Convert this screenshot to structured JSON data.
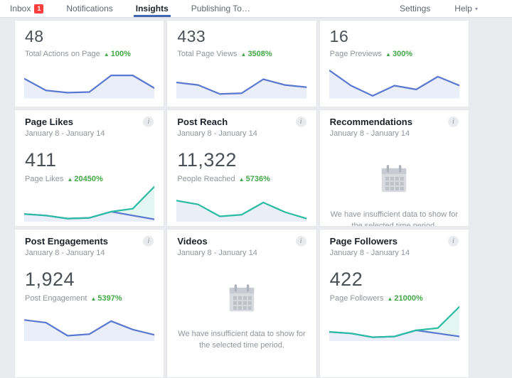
{
  "nav": {
    "inbox": {
      "label": "Inbox",
      "badge": "1"
    },
    "notifications": {
      "label": "Notifications"
    },
    "insights": {
      "label": "Insights"
    },
    "publishing": {
      "label": "Publishing To…"
    },
    "settings": {
      "label": "Settings"
    },
    "help": {
      "label": "Help"
    }
  },
  "glyphs": {
    "up": "▲",
    "caret": "▾",
    "info": "i"
  },
  "cards": {
    "total_actions": {
      "value": "48",
      "label": "Total Actions on Page",
      "change": "100%"
    },
    "total_page_views": {
      "value": "433",
      "label": "Total Page Views",
      "change": "3508%"
    },
    "page_previews": {
      "value": "16",
      "label": "Page Previews",
      "change": "300%"
    },
    "page_likes": {
      "title": "Page Likes",
      "dates": "January 8 - January 14",
      "value": "411",
      "label": "Page Likes",
      "change": "20450%"
    },
    "post_reach": {
      "title": "Post Reach",
      "dates": "January 8 - January 14",
      "value": "11,322",
      "label": "People Reached",
      "change": "5736%"
    },
    "recommendations": {
      "title": "Recommendations",
      "dates": "January 8 - January 14",
      "nodata": "We have insufficient data to show for the selected time period."
    },
    "post_engagements": {
      "title": "Post Engagements",
      "dates": "January 8 - January 14",
      "value": "1,924",
      "label": "Post Engagement",
      "change": "5397%"
    },
    "videos": {
      "title": "Videos",
      "dates": "January 8 - January 14",
      "nodata": "We have insufficient data to show for the selected time period."
    },
    "page_followers": {
      "title": "Page Followers",
      "dates": "January 8 - January 14",
      "value": "422",
      "label": "Page Followers",
      "change": "21000%"
    }
  },
  "colors": {
    "accent_blue": "#4267b2",
    "badge_red": "#fa3e3e",
    "growth_green": "#42a846",
    "spark_blue": "#5a78cf",
    "spark_blue_fill": "#e9eef9",
    "spark_teal": "#2abca3",
    "spark_teal_fill": "#e3f6f1",
    "page_bg": "#e9ebee",
    "card_border": "#e4e6e9"
  },
  "chart_data": [
    {
      "type": "area",
      "title": "Total Actions on Page sparkline",
      "axes_visible": false,
      "y_scale": "relative 0-100 (no axis shown)",
      "series": [
        {
          "name": "blue-line",
          "color": "#5a78cf",
          "fill": "#e9eef9",
          "values": [
            62,
            25,
            18,
            20,
            72,
            72,
            32
          ]
        }
      ]
    },
    {
      "type": "area",
      "title": "Total Page Views sparkline",
      "axes_visible": false,
      "y_scale": "relative 0-100 (no axis shown)",
      "series": [
        {
          "name": "blue-line",
          "color": "#5a78cf",
          "fill": "#e9eef9",
          "values": [
            50,
            42,
            14,
            16,
            60,
            42,
            35
          ]
        }
      ]
    },
    {
      "type": "area",
      "title": "Page Previews sparkline",
      "axes_visible": false,
      "y_scale": "relative 0-100 (no axis shown)",
      "series": [
        {
          "name": "blue-line",
          "color": "#5a78cf",
          "fill": "#e9eef9",
          "values": [
            88,
            40,
            8,
            40,
            28,
            68,
            40
          ]
        }
      ]
    },
    {
      "type": "area",
      "title": "Page Likes sparkline",
      "period": "January 8 - January 14",
      "axes_visible": false,
      "y_scale": "relative 0-100 (no axis shown)",
      "series": [
        {
          "name": "teal-line",
          "color": "#2abca3",
          "fill": "#e3f6f1",
          "values": [
            20,
            16,
            8,
            10,
            26,
            34,
            92
          ]
        },
        {
          "name": "blue-line",
          "color": "#5a78cf",
          "fill": "#e9eef9",
          "values": [
            20,
            16,
            8,
            10,
            26,
            16,
            6
          ]
        }
      ]
    },
    {
      "type": "area",
      "title": "Post Reach sparkline",
      "period": "January 8 - January 14",
      "axes_visible": false,
      "y_scale": "relative 0-100 (no axis shown)",
      "series": [
        {
          "name": "teal-line",
          "color": "#2abca3",
          "fill": "#eaeef7",
          "values": [
            55,
            45,
            14,
            18,
            50,
            25,
            8
          ]
        }
      ]
    },
    {
      "type": "area",
      "title": "Post Engagements sparkline",
      "period": "January 8 - January 14",
      "axes_visible": false,
      "y_scale": "relative 0-100 (no axis shown)",
      "series": [
        {
          "name": "blue-line",
          "color": "#5a78cf",
          "fill": "#e9eef9",
          "values": [
            55,
            48,
            14,
            18,
            52,
            30,
            16
          ]
        }
      ]
    },
    {
      "type": "area",
      "title": "Page Followers sparkline",
      "period": "January 8 - January 14",
      "axes_visible": false,
      "y_scale": "relative 0-100 (no axis shown)",
      "series": [
        {
          "name": "teal-line",
          "color": "#2abca3",
          "fill": "#e3f6f1",
          "values": [
            24,
            20,
            10,
            12,
            28,
            34,
            90
          ]
        },
        {
          "name": "blue-line",
          "color": "#5a78cf",
          "fill": "#e9eef9",
          "values": [
            24,
            20,
            10,
            12,
            28,
            20,
            12
          ]
        }
      ]
    }
  ]
}
